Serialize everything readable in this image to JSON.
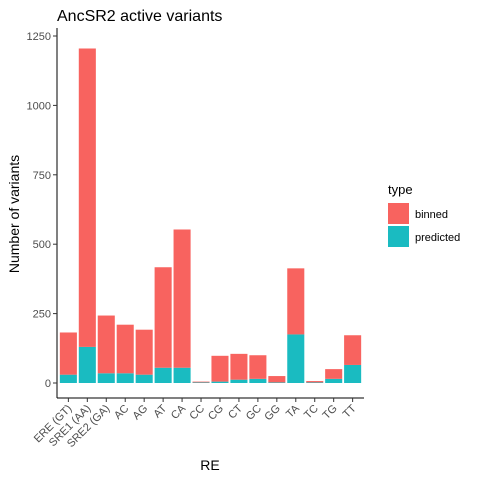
{
  "chart_data": {
    "type": "bar",
    "stacked": true,
    "title": "AncSR2 active variants",
    "xlabel": "RE",
    "ylabel": "Number of variants",
    "ylim": [
      0,
      1280
    ],
    "yticks": [
      0,
      250,
      500,
      750,
      1000,
      1250
    ],
    "grid": false,
    "legend_position": "right",
    "legend_title": "type",
    "categories": [
      "ERE (GT)",
      "SRE1 (AA)",
      "SRE2 (GA)",
      "AC",
      "AG",
      "AT",
      "CA",
      "CC",
      "CG",
      "CT",
      "GC",
      "GG",
      "TA",
      "TC",
      "TG",
      "TT"
    ],
    "series": [
      {
        "name": "predicted",
        "color": "#1ABBC1",
        "values": [
          30,
          130,
          35,
          35,
          30,
          55,
          55,
          2,
          5,
          12,
          15,
          2,
          175,
          2,
          15,
          65
        ]
      },
      {
        "name": "binned",
        "color": "#F8635F",
        "values": [
          152,
          1075,
          208,
          175,
          162,
          362,
          498,
          3,
          93,
          93,
          85,
          23,
          238,
          5,
          35,
          107
        ]
      }
    ],
    "legend_order": [
      "binned",
      "predicted"
    ]
  }
}
